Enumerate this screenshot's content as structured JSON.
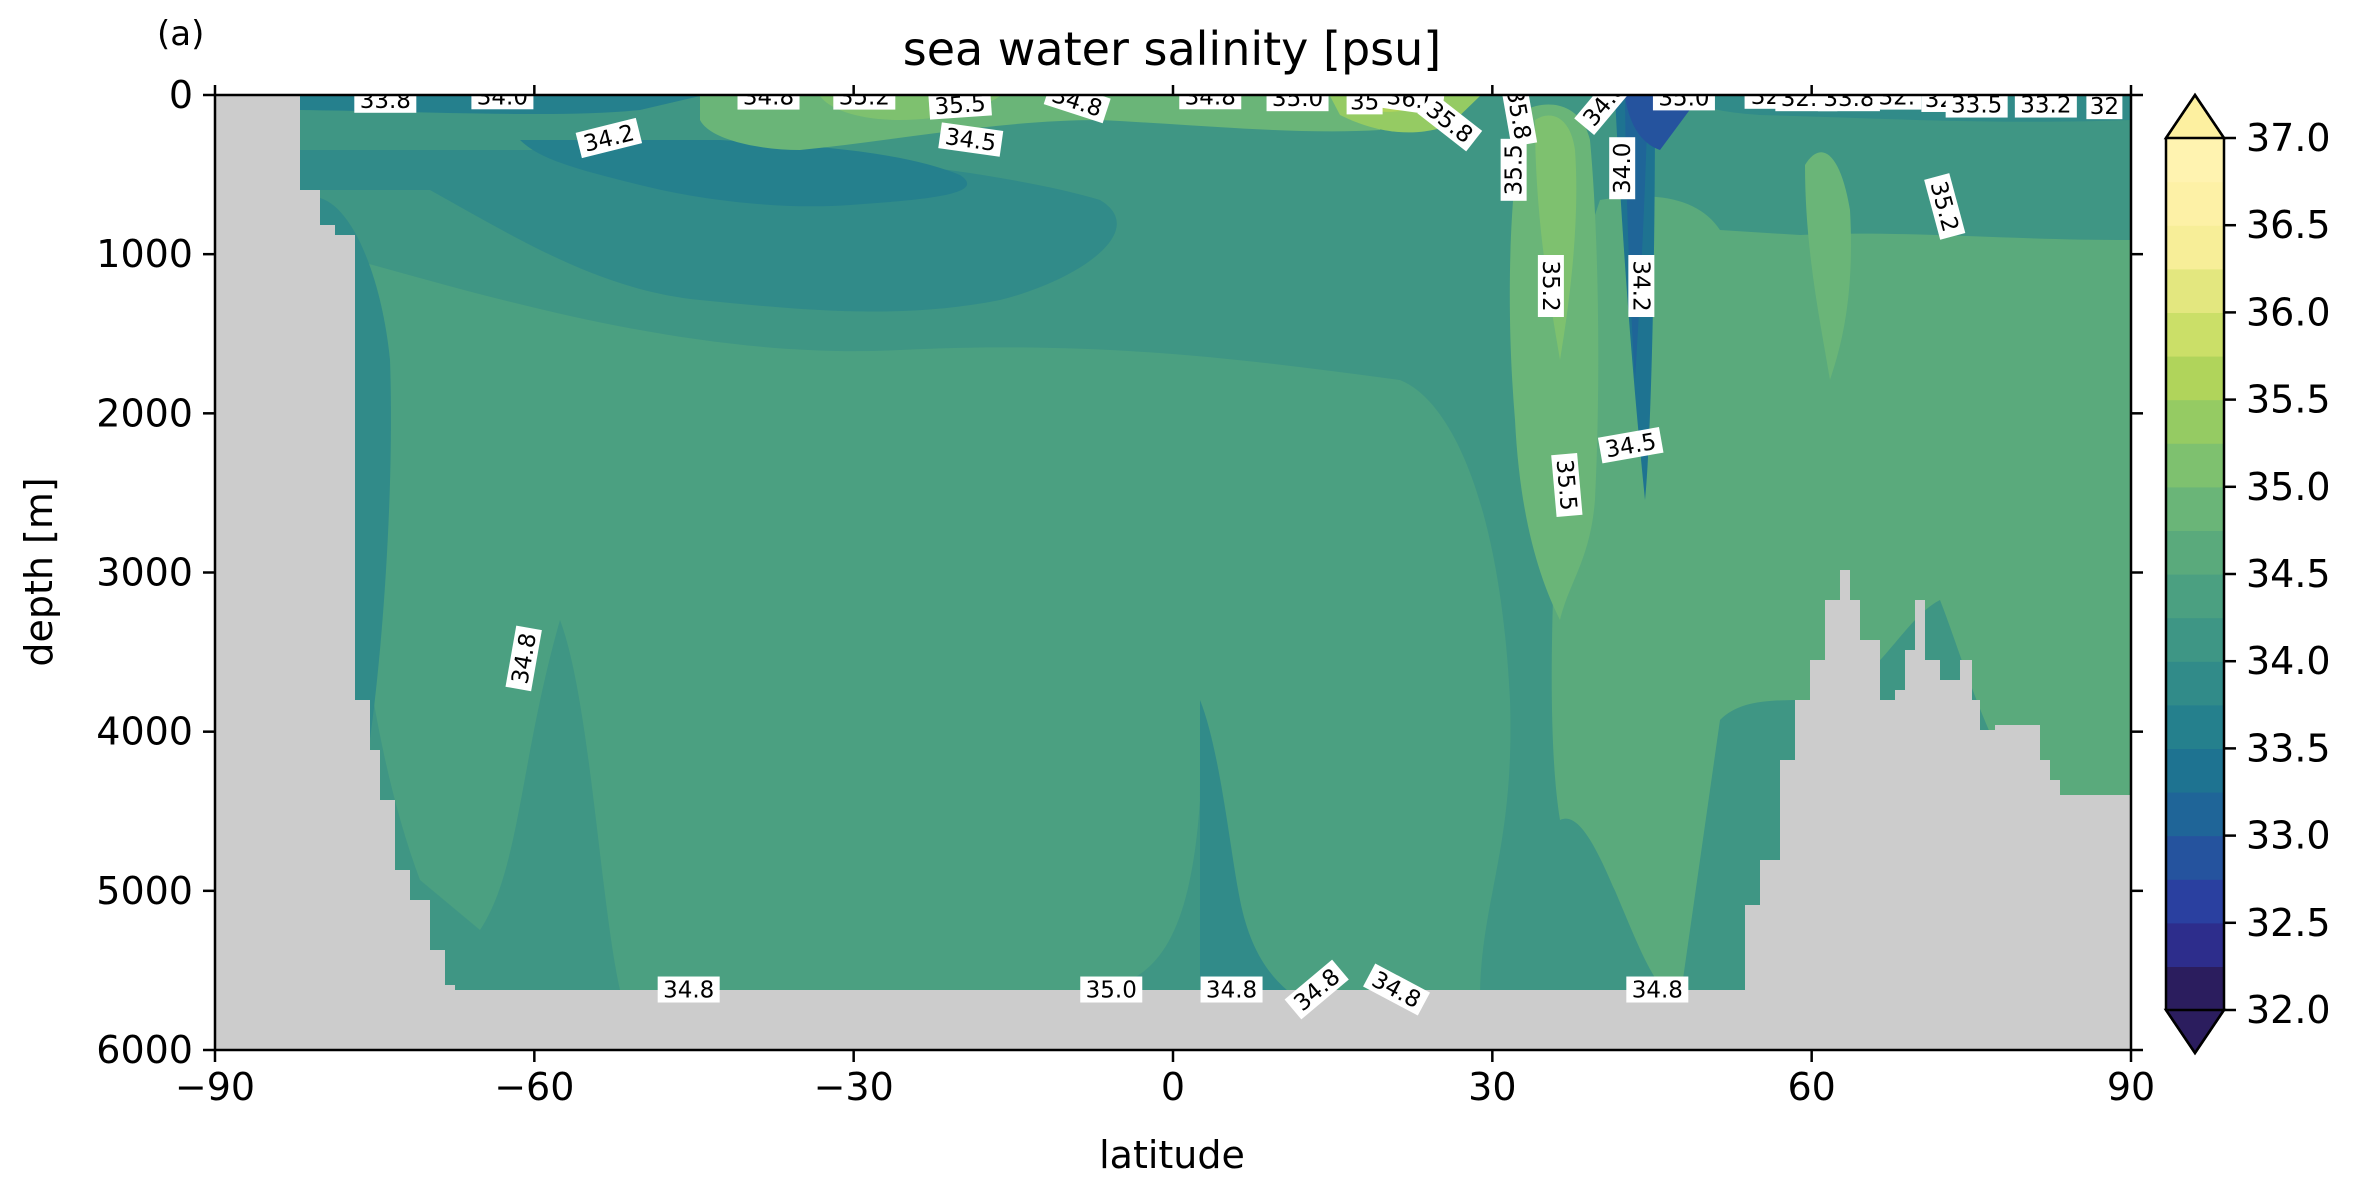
{
  "chart_data": {
    "type": "contourf",
    "panel_label": "(a)",
    "title": "sea water salinity [psu]",
    "xlabel": "latitude",
    "ylabel": "depth [m]",
    "xlim": [
      -90,
      90
    ],
    "ylim": [
      6000,
      0
    ],
    "x_ticks": [
      -90,
      -60,
      -30,
      0,
      30,
      60,
      90
    ],
    "x_tick_labels": [
      "−90",
      "−60",
      "−30",
      "0",
      "30",
      "60",
      "90"
    ],
    "y_ticks": [
      0,
      1000,
      2000,
      3000,
      4000,
      5000,
      6000
    ],
    "y_tick_labels": [
      "0",
      "1000",
      "2000",
      "3000",
      "4000",
      "5000",
      "6000"
    ],
    "colorbar": {
      "min": 32.0,
      "max": 37.0,
      "step": 0.25,
      "extend": "both",
      "tick_values": [
        32.0,
        32.5,
        33.0,
        33.5,
        34.0,
        34.5,
        35.0,
        35.5,
        36.0,
        36.5,
        37.0
      ],
      "tick_labels": [
        "32.0",
        "32.5",
        "33.0",
        "33.5",
        "34.0",
        "34.5",
        "35.0",
        "35.5",
        "36.0",
        "36.5",
        "37.0"
      ],
      "colors": [
        "#2b1d5e",
        "#2d2d8c",
        "#2a40a0",
        "#25539e",
        "#1f6598",
        "#1e7391",
        "#25808d",
        "#318b89",
        "#3e9685",
        "#4ba081",
        "#5aaa7c",
        "#6ab578",
        "#7ec16f",
        "#95cb63",
        "#b0d45b",
        "#cbdf68",
        "#e3e77f",
        "#f7ee98",
        "#fdf1a6",
        "#fff3b0"
      ],
      "under_color": "#2b1d5e",
      "over_color": "#fdf0a0"
    },
    "land_color": "#cccccc",
    "contour_labels": [
      {
        "text": "33.8",
        "x": -74,
        "y": 30,
        "rot": 0
      },
      {
        "text": "34.0",
        "x": -63,
        "y": 8,
        "rot": 0
      },
      {
        "text": "34.2",
        "x": -53,
        "y": 270,
        "rot": 14
      },
      {
        "text": "34.8",
        "x": -38,
        "y": 10,
        "rot": 0
      },
      {
        "text": "35.2",
        "x": -29,
        "y": 10,
        "rot": 0
      },
      {
        "text": "35.5",
        "x": -20,
        "y": 60,
        "rot": 4
      },
      {
        "text": "34.5",
        "x": -19,
        "y": 280,
        "rot": -8
      },
      {
        "text": "34.8",
        "x": -9,
        "y": 40,
        "rot": -18
      },
      {
        "text": "34.8",
        "x": 3.5,
        "y": 8,
        "rot": 0
      },
      {
        "text": "35.0",
        "x": 11.7,
        "y": 20,
        "rot": 0
      },
      {
        "text": "35",
        "x": 18,
        "y": 40,
        "rot": 0
      },
      {
        "text": "36.0",
        "x": 22.5,
        "y": 25,
        "rot": -8
      },
      {
        "text": "35.8",
        "x": 26,
        "y": 170,
        "rot": -38
      },
      {
        "text": "35.8",
        "x": 32.5,
        "y": 120,
        "rot": -80
      },
      {
        "text": "35.5",
        "x": 32,
        "y": 470,
        "rot": 90
      },
      {
        "text": "34.8",
        "x": 40.5,
        "y": 50,
        "rot": 50
      },
      {
        "text": "34.0",
        "x": 42.2,
        "y": 460,
        "rot": 90
      },
      {
        "text": "35.0",
        "x": 48,
        "y": 15,
        "rot": 0
      },
      {
        "text": "32.",
        "x": 56,
        "y": 5,
        "rot": 0
      },
      {
        "text": "32.2",
        "x": 59.5,
        "y": 20,
        "rot": 0
      },
      {
        "text": "33.8",
        "x": 63.5,
        "y": 20,
        "rot": 0
      },
      {
        "text": "32.",
        "x": 68,
        "y": 10,
        "rot": 0
      },
      {
        "text": "32",
        "x": 72,
        "y": 25,
        "rot": 0
      },
      {
        "text": "33.5",
        "x": 75.5,
        "y": 60,
        "rot": 0
      },
      {
        "text": "33.2",
        "x": 82,
        "y": 60,
        "rot": 0
      },
      {
        "text": "32",
        "x": 87.5,
        "y": 70,
        "rot": 0
      },
      {
        "text": "35.2",
        "x": 72.5,
        "y": 700,
        "rot": -75
      },
      {
        "text": "35.2",
        "x": 35.5,
        "y": 1200,
        "rot": -90
      },
      {
        "text": "34.2",
        "x": 44,
        "y": 1200,
        "rot": -90
      },
      {
        "text": "34.5",
        "x": 43,
        "y": 2200,
        "rot": 10
      },
      {
        "text": "35.5",
        "x": 37,
        "y": 2450,
        "rot": -85
      },
      {
        "text": "34.8",
        "x": -61,
        "y": 3540,
        "rot": 80
      },
      {
        "text": "34.8",
        "x": -45.5,
        "y": 5620,
        "rot": 0
      },
      {
        "text": "35.0",
        "x": -5.8,
        "y": 5620,
        "rot": 0
      },
      {
        "text": "34.8",
        "x": 5.5,
        "y": 5620,
        "rot": 0
      },
      {
        "text": "34.8",
        "x": 13.5,
        "y": 5620,
        "rot": 40
      },
      {
        "text": "34.8",
        "x": 21,
        "y": 5620,
        "rot": -28
      },
      {
        "text": "34.8",
        "x": 45.5,
        "y": 5620,
        "rot": 0
      }
    ]
  }
}
